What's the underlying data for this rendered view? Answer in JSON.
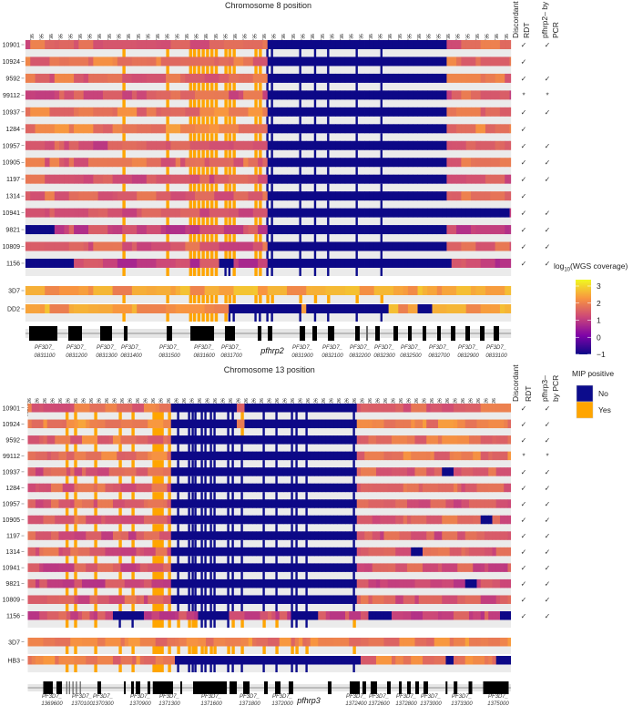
{
  "legend_coverage": {
    "title_prefix": "log",
    "title_sub": "10",
    "title_suffix": "(WGS coverage)",
    "ticks": [
      {
        "value": 3,
        "label": "3"
      },
      {
        "value": 2,
        "label": "2"
      },
      {
        "value": 1,
        "label": "1"
      },
      {
        "value": 0,
        "label": "0"
      },
      {
        "value": -1,
        "label": "−1"
      }
    ],
    "range": [
      -1,
      3.4
    ]
  },
  "legend_mip": {
    "title": "MIP positive",
    "items": [
      {
        "label": "No",
        "color": "#0c0c8c"
      },
      {
        "label": "Yes",
        "color": "#ffa500"
      }
    ]
  },
  "colors": {
    "background_band": "#ebebeb",
    "gene": "#000000",
    "gene_track": "#e6e6e6"
  },
  "chart_data": [
    {
      "type": "heatmap",
      "title": "Chromosome 8 position",
      "col_header_1": [
        "Discordant",
        "RDT"
      ],
      "col_header_2": [
        "pfhrp2– by",
        "PCR"
      ],
      "x_range": [
        1324400,
        1424700
      ],
      "tick_start": 1325735,
      "tick_step": 2000,
      "tick_count": 50,
      "mip_probes": [
        1344735,
        1353765,
        1358500,
        1359300,
        1360200,
        1361100,
        1362000,
        1362900,
        1363800,
        1365800,
        1366600,
        1367500,
        1372000,
        1372900,
        1374450,
        1375400,
        1381230,
        1384300,
        1387000,
        1392900,
        1398000
      ],
      "samples": [
        {
          "id": "10901",
          "base": 1.6,
          "del": [
            [
              1374000,
              1411000
            ]
          ],
          "rdt": "✓",
          "pcr": "✓"
        },
        {
          "id": "10924",
          "base": 1.8,
          "del": [
            [
              1374000,
              1411000
            ]
          ],
          "rdt": "✓",
          "pcr": ""
        },
        {
          "id": "9592",
          "base": 1.7,
          "del": [
            [
              1374000,
              1411000
            ]
          ],
          "rdt": "✓",
          "pcr": "✓"
        },
        {
          "id": "99112",
          "base": 1.5,
          "del": [
            [
              1374000,
              1411000
            ]
          ],
          "rdt": "*",
          "pcr": "*"
        },
        {
          "id": "10937",
          "base": 1.9,
          "del": [
            [
              1374000,
              1411000
            ]
          ],
          "rdt": "✓",
          "pcr": "✓"
        },
        {
          "id": "1284",
          "base": 2.0,
          "del": [
            [
              1374000,
              1411000
            ]
          ],
          "rdt": "✓",
          "pcr": ""
        },
        {
          "id": "10957",
          "base": 1.4,
          "del": [
            [
              1374000,
              1411000
            ]
          ],
          "rdt": "✓",
          "pcr": "✓"
        },
        {
          "id": "10905",
          "base": 1.7,
          "del": [
            [
              1374000,
              1411000
            ]
          ],
          "rdt": "✓",
          "pcr": "✓"
        },
        {
          "id": "1197",
          "base": 1.5,
          "del": [
            [
              1374000,
              1411000
            ]
          ],
          "rdt": "✓",
          "pcr": "✓"
        },
        {
          "id": "1314",
          "base": 1.6,
          "del": [
            [
              1374000,
              1411000
            ]
          ],
          "rdt": "✓",
          "pcr": ""
        },
        {
          "id": "10941",
          "base": 1.3,
          "del": [
            [
              1374000,
              1424700
            ]
          ],
          "rdt": "✓",
          "pcr": "✓"
        },
        {
          "id": "9821",
          "base": 1.2,
          "del": [
            [
              1324400,
              1330000
            ],
            [
              1374000,
              1411000
            ]
          ],
          "rdt": "✓",
          "pcr": "✓"
        },
        {
          "id": "10809",
          "base": 1.5,
          "del": [
            [
              1374000,
              1411000
            ]
          ],
          "rdt": "✓",
          "pcr": "✓"
        },
        {
          "id": "1156",
          "base": 1.1,
          "del": [
            [
              1324400,
              1334000
            ],
            [
              1364000,
              1367500
            ],
            [
              1374000,
              1412000
            ]
          ],
          "rdt": "✓",
          "pcr": "✓"
        }
      ],
      "references": [
        {
          "id": "3D7",
          "base": 2.4,
          "del": []
        },
        {
          "id": "DD2",
          "base": 2.4,
          "del": [
            [
              1366400,
              1381500
            ],
            [
              1382500,
              1399500
            ],
            [
              1405000,
              1408000
            ]
          ]
        }
      ],
      "genes": [
        [
          1325171,
          1331000
        ],
        [
          1333260,
          1336080
        ],
        [
          1339840,
          1342290
        ],
        [
          1344730,
          1345490
        ],
        [
          1353570,
          1354700
        ],
        [
          1358470,
          1363360
        ],
        [
          1365610,
          1367680
        ],
        [
          1372380,
          1373140
        ],
        [
          1374450,
          1375390
        ],
        [
          1381040,
          1382170
        ],
        [
          1383670,
          1384610
        ],
        [
          1386870,
          1388190
        ],
        [
          1392510,
          1393450
        ],
        [
          1394770,
          1395150
        ],
        [
          1396650,
          1397590
        ],
        [
          1400410,
          1401350
        ],
        [
          1403420,
          1404180
        ],
        [
          1406430,
          1407180
        ],
        [
          1409440,
          1410190
        ],
        [
          1412260,
          1413200
        ],
        [
          1415270,
          1416210
        ],
        [
          1418280,
          1419220
        ],
        [
          1421100,
          1422230
        ]
      ],
      "gene_labels": [
        {
          "pos": 1328370,
          "l1": "PF3D7_",
          "l2": "0831100"
        },
        {
          "pos": 1334950,
          "l1": "PF3D7_",
          "l2": "0831200"
        },
        {
          "pos": 1341160,
          "l1": "PF3D7_",
          "l2": "0831300"
        },
        {
          "pos": 1346240,
          "l1": "PF3D7_",
          "l2": "0831400"
        },
        {
          "pos": 1354140,
          "l1": "PF3D7_",
          "l2": "0831500"
        },
        {
          "pos": 1361310,
          "l1": "PF3D7_",
          "l2": "0831600"
        },
        {
          "pos": 1366930,
          "l1": "PF3D7_",
          "l2": "0831700"
        },
        {
          "pos": 1375390,
          "big": "pfhrp2"
        },
        {
          "pos": 1381600,
          "l1": "PF3D7_",
          "l2": "0831900"
        },
        {
          "pos": 1387810,
          "l1": "PF3D7_",
          "l2": "0832100"
        },
        {
          "pos": 1393450,
          "l1": "PF3D7_",
          "l2": "0832200"
        },
        {
          "pos": 1398530,
          "l1": "PF3D7_",
          "l2": "0832300"
        },
        {
          "pos": 1403980,
          "l1": "PF3D7_",
          "l2": "0832500"
        },
        {
          "pos": 1409820,
          "l1": "PF3D7_",
          "l2": "0832700"
        },
        {
          "pos": 1415840,
          "l1": "PF3D7_",
          "l2": "0832900"
        },
        {
          "pos": 1421670,
          "l1": "PF3D7_",
          "l2": "0833100"
        }
      ]
    },
    {
      "type": "heatmap",
      "title": "Chromosome 13 position",
      "col_header_1": [
        "Discordant",
        "RDT"
      ],
      "col_header_2": [
        "pfhrp3–",
        "by PCR"
      ],
      "x_range": [
        2770870,
        2895700
      ],
      "tick_start": 2771226,
      "tick_step": 2000,
      "tick_count": 61,
      "mip_probes": [
        2781000,
        2783200,
        2788400,
        2794750,
        2798050,
        2803460,
        2804170,
        2804870,
        2805580,
        2807460,
        2809810,
        2812640,
        2813580,
        2814280,
        2815930,
        2816870,
        2818280,
        2819220,
        2822750,
        2823930,
        2826280,
        2831930,
        2835220,
        2839220,
        2840400,
        2842990,
        2855230
      ],
      "samples": [
        {
          "id": "10901",
          "base": 1.7,
          "del": [
            [
              2807900,
              2825300
            ],
            [
              2827200,
              2855900
            ]
          ],
          "rdt": "✓",
          "pcr": "✓"
        },
        {
          "id": "10924",
          "base": 2.1,
          "del": [
            [
              2807900,
              2825300
            ],
            [
              2827200,
              2855900
            ]
          ],
          "rdt": "✓",
          "pcr": "✓"
        },
        {
          "id": "9592",
          "base": 1.8,
          "del": [
            [
              2807900,
              2855900
            ]
          ],
          "rdt": "✓",
          "pcr": "✓"
        },
        {
          "id": "99112",
          "base": 1.9,
          "del": [
            [
              2807900,
              2855900
            ]
          ],
          "rdt": "*",
          "pcr": "*"
        },
        {
          "id": "10937",
          "base": 1.5,
          "del": [
            [
              2807900,
              2855900
            ],
            [
              2878000,
              2881000
            ]
          ],
          "rdt": "✓",
          "pcr": "✓"
        },
        {
          "id": "1284",
          "base": 1.6,
          "del": [
            [
              2807900,
              2855900
            ]
          ],
          "rdt": "✓",
          "pcr": "✓"
        },
        {
          "id": "10957",
          "base": 1.5,
          "del": [
            [
              2807900,
              2855900
            ]
          ],
          "rdt": "✓",
          "pcr": "✓"
        },
        {
          "id": "10905",
          "base": 1.6,
          "del": [
            [
              2807900,
              2855900
            ],
            [
              2888000,
              2891000
            ]
          ],
          "rdt": "✓",
          "pcr": "✓"
        },
        {
          "id": "1197",
          "base": 1.4,
          "del": [
            [
              2807900,
              2855900
            ]
          ],
          "rdt": "✓",
          "pcr": "✓"
        },
        {
          "id": "1314",
          "base": 1.5,
          "del": [
            [
              2807900,
              2855900
            ],
            [
              2870000,
              2873000
            ]
          ],
          "rdt": "✓",
          "pcr": "✓"
        },
        {
          "id": "10941",
          "base": 1.4,
          "del": [
            [
              2807900,
              2855900
            ]
          ],
          "rdt": "✓",
          "pcr": "✓"
        },
        {
          "id": "9821",
          "base": 1.3,
          "del": [
            [
              2807900,
              2855900
            ],
            [
              2884000,
              2887000
            ]
          ],
          "rdt": "✓",
          "pcr": "✓"
        },
        {
          "id": "10809",
          "base": 1.5,
          "del": [
            [
              2807900,
              2855900
            ]
          ],
          "rdt": "✓",
          "pcr": "✓"
        },
        {
          "id": "1156",
          "base": 1.3,
          "del": [
            [
              2792600,
              2800900
            ],
            [
              2815200,
              2823200
            ],
            [
              2838800,
              2846000
            ],
            [
              2858500,
              2865100
            ],
            [
              2893000,
              2895700
            ]
          ],
          "rdt": "✓",
          "pcr": "✓"
        }
      ],
      "references": [
        {
          "id": "3D7",
          "base": 2.0,
          "del": []
        },
        {
          "id": "HB3",
          "base": 1.9,
          "del": [
            [
              2809100,
              2857300
            ],
            [
              2879000,
              2881000
            ],
            [
              2892000,
              2895700
            ]
          ]
        }
      ],
      "genes": [
        [
          2774870,
          2777340
        ],
        [
          2778280,
          2779700
        ],
        [
          2780800,
          2781100
        ],
        [
          2781500,
          2781800
        ],
        [
          2782400,
          2782700
        ],
        [
          2783300,
          2783600
        ],
        [
          2784300,
          2784600
        ],
        [
          2788870,
          2789810
        ],
        [
          2795700,
          2796170
        ],
        [
          2797580,
          2798290
        ],
        [
          2798760,
          2799930
        ],
        [
          2801810,
          2802520
        ],
        [
          2803170,
          2808400
        ],
        [
          2810280,
          2810750
        ],
        [
          2813580,
          2822290
        ],
        [
          2823000,
          2824880
        ],
        [
          2826520,
          2828170
        ],
        [
          2831930,
          2832870
        ],
        [
          2834760,
          2836170
        ],
        [
          2838280,
          2839460
        ],
        [
          2848400,
          2849340
        ],
        [
          2854050,
          2856640
        ],
        [
          2857340,
          2858280
        ],
        [
          2859460,
          2861110
        ],
        [
          2863700,
          2864640
        ],
        [
          2866760,
          2867470
        ],
        [
          2868870,
          2869810
        ],
        [
          2870990,
          2871930
        ],
        [
          2873110,
          2874290
        ],
        [
          2878820,
          2879290
        ],
        [
          2880920,
          2881860
        ],
        [
          2884760,
          2885700
        ],
        [
          2888520,
          2895110
        ]
      ],
      "gene_labels": [
        {
          "pos": 2777110,
          "l1": "PF3D7_",
          "l2": "1369600"
        },
        {
          "pos": 2784870,
          "l1": "PF3D7_",
          "l2": "1370100"
        },
        {
          "pos": 2790280,
          "l1": "PF3D7_",
          "l2": "1370300"
        },
        {
          "pos": 2799930,
          "l1": "PF3D7_",
          "l2": "1370900"
        },
        {
          "pos": 2807460,
          "l1": "PF3D7_",
          "l2": "1371300"
        },
        {
          "pos": 2818290,
          "l1": "PF3D7_",
          "l2": "1371600"
        },
        {
          "pos": 2828170,
          "l1": "PF3D7_",
          "l2": "1371800"
        },
        {
          "pos": 2836640,
          "l1": "PF3D7_",
          "l2": "1372000"
        },
        {
          "pos": 2843460,
          "big": "pfhrp3"
        },
        {
          "pos": 2855700,
          "l1": "PF3D7_",
          "l2": "1372400"
        },
        {
          "pos": 2861580,
          "l1": "PF3D7_",
          "l2": "1372600"
        },
        {
          "pos": 2868640,
          "l1": "PF3D7_",
          "l2": "1372800"
        },
        {
          "pos": 2874990,
          "l1": "PF3D7_",
          "l2": "1373000"
        },
        {
          "pos": 2882990,
          "l1": "PF3D7_",
          "l2": "1373300"
        },
        {
          "pos": 2892400,
          "l1": "PF3D7_",
          "l2": "1375000"
        }
      ]
    }
  ]
}
